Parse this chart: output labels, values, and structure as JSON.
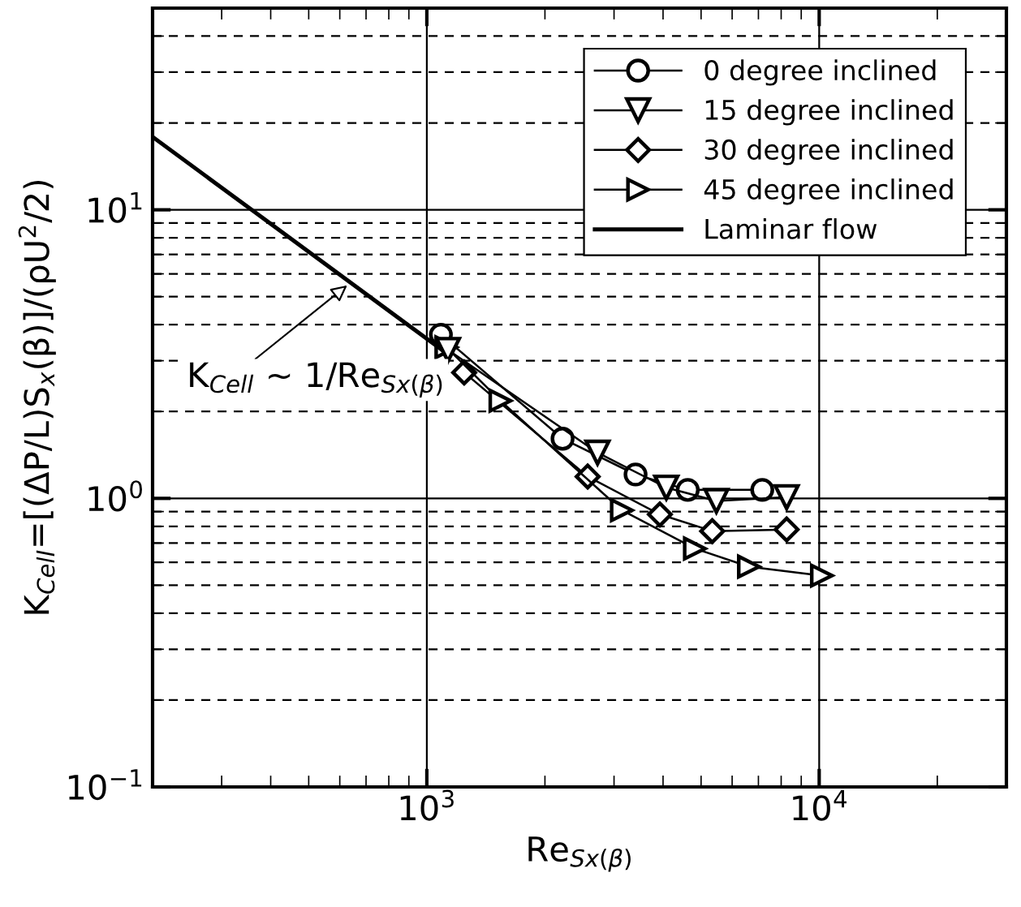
{
  "chart_data": {
    "type": "line",
    "xlabel": "Re$_{Sx(β)}$",
    "ylabel": "K$_{Cell}$=[(ΔP/L)S$_{x}$(β)]/(ρU$^{2}$/2)",
    "log": "xy",
    "xlim": [
      200,
      30000
    ],
    "ylim": [
      0.1,
      50
    ],
    "xticks": [
      {
        "value": 1000,
        "label": "10$^{3}$"
      },
      {
        "value": 10000,
        "label": "10$^{4}$"
      }
    ],
    "yticks": [
      {
        "value": 0.1,
        "label": "10$^{−1}$"
      },
      {
        "value": 1,
        "label": "10$^{0}$"
      },
      {
        "value": 10,
        "label": "10$^{1}$"
      }
    ],
    "grid": true,
    "legend": "top right",
    "series": [
      {
        "name": "0 degree inclined",
        "color": "#000000",
        "marker": "circle",
        "x": [
          1086,
          2218,
          3404,
          4624,
          7160
        ],
        "values": [
          3.69,
          1.61,
          1.21,
          1.07,
          1.07
        ]
      },
      {
        "name": "15 degree inclined",
        "color": "#000000",
        "marker": "triangle-down",
        "x": [
          1132,
          2723,
          4077,
          5469,
          8260
        ],
        "values": [
          3.27,
          1.44,
          1.09,
          0.98,
          1.01
        ]
      },
      {
        "name": "30 degree inclined",
        "color": "#000000",
        "marker": "diamond",
        "x": [
          1245,
          2570,
          3926,
          5338,
          8260
        ],
        "values": [
          2.73,
          1.19,
          0.88,
          0.77,
          0.78
        ]
      },
      {
        "name": "45 degree inclined",
        "color": "#000000",
        "marker": "triangle-right",
        "x": [
          1121,
          1540,
          3140,
          4820,
          6620,
          10160
        ],
        "values": [
          3.34,
          2.18,
          0.91,
          0.67,
          0.58,
          0.54
        ]
      },
      {
        "name": "Laminar flow",
        "color": "#000000",
        "marker": "none",
        "x": [
          200,
          1100
        ],
        "values": [
          17.9,
          3.25
        ]
      }
    ],
    "annotations": [
      {
        "text": "K$_{Cell}$ ∼ 1/Re$_{Sx(β)}$",
        "x": 640,
        "y": 5.6
      }
    ]
  }
}
